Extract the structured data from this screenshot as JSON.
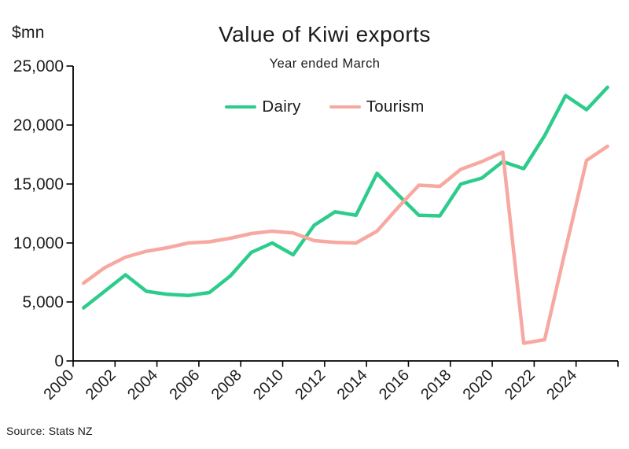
{
  "units_label": "$mn",
  "title": "Value of Kiwi exports",
  "subtitle": "Year ended March",
  "source_note": "Source: Stats NZ",
  "colors": {
    "dairy": "#2ECC8C",
    "tourism": "#F7A9A1",
    "axis": "#000000",
    "text": "#1B1B1B"
  },
  "legend": [
    {
      "label": "Dairy",
      "series": "dairy"
    },
    {
      "label": "Tourism",
      "series": "tourism"
    }
  ],
  "chart_data": {
    "type": "line",
    "title": "Value of Kiwi exports",
    "subtitle": "Year ended March",
    "xlabel": "",
    "ylabel": "$mn",
    "ylim": [
      0,
      25000
    ],
    "grid": false,
    "legend_position": "top-center",
    "y_ticks": [
      0,
      5000,
      10000,
      15000,
      20000,
      25000
    ],
    "x_tick_labels": [
      "2000",
      "2002",
      "2004",
      "2006",
      "2008",
      "2010",
      "2012",
      "2014",
      "2016",
      "2018",
      "2020",
      "2022",
      "2024"
    ],
    "x": [
      2000,
      2001,
      2002,
      2003,
      2004,
      2005,
      2006,
      2007,
      2008,
      2009,
      2010,
      2011,
      2012,
      2013,
      2014,
      2015,
      2016,
      2017,
      2018,
      2019,
      2020,
      2021,
      2022,
      2023,
      2024,
      2025
    ],
    "series": [
      {
        "name": "Dairy",
        "color": "#2ECC8C",
        "values": [
          4500,
          5900,
          7300,
          5900,
          5650,
          5550,
          5800,
          7200,
          9200,
          10000,
          9000,
          11500,
          12650,
          12350,
          15900,
          14100,
          12350,
          12300,
          15000,
          15500,
          16900,
          16300,
          19100,
          22500,
          21300,
          23200
        ]
      },
      {
        "name": "Tourism",
        "color": "#F7A9A1",
        "values": [
          6600,
          7900,
          8800,
          9300,
          9600,
          10000,
          10100,
          10400,
          10800,
          11000,
          10850,
          10200,
          10050,
          10000,
          11000,
          13000,
          14900,
          14800,
          16250,
          16900,
          17700,
          1500,
          1800,
          9500,
          17000,
          18200
        ]
      }
    ]
  }
}
